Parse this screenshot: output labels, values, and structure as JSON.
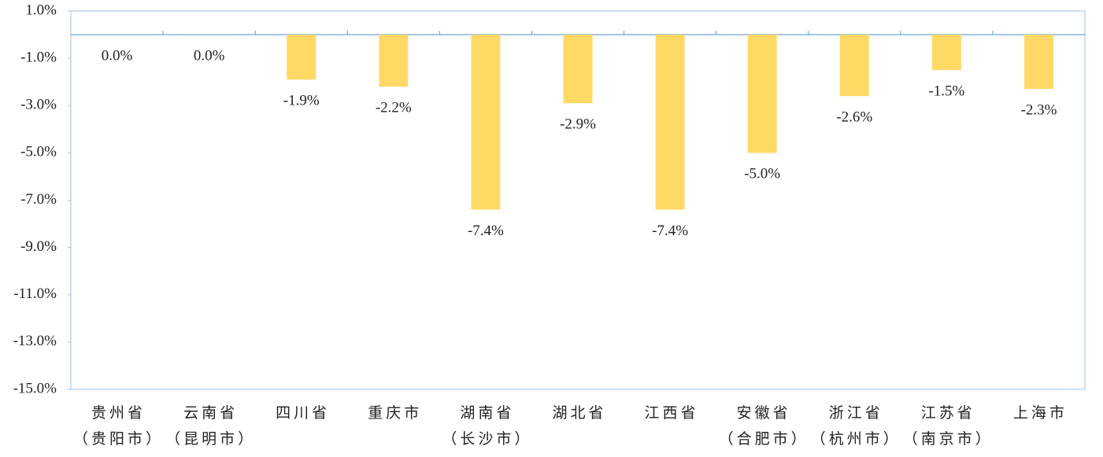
{
  "chart_data": {
    "type": "bar",
    "categories": [
      "贵州省\n（贵阳市）",
      "云南省\n（昆明市）",
      "四川省",
      "重庆市",
      "湖南省\n（长沙市）",
      "湖北省",
      "江西省",
      "安徽省\n（合肥市）",
      "浙江省\n（杭州市）",
      "江苏省\n（南京市）",
      "上海市"
    ],
    "values": [
      0.0,
      0.0,
      -1.9,
      -2.2,
      -7.4,
      -2.9,
      -7.4,
      -5.0,
      -2.6,
      -1.5,
      -2.3
    ],
    "value_labels": [
      "0.0%",
      "0.0%",
      "-1.9%",
      "-2.2%",
      "-7.4%",
      "-2.9%",
      "-7.4%",
      "-5.0%",
      "-2.6%",
      "-1.5%",
      "-2.3%"
    ],
    "color": "#FFD966",
    "ylim": [
      -15,
      1
    ],
    "yticks": [
      {
        "value": 1,
        "label": "1.0%"
      },
      {
        "value": -1,
        "label": "-1.0%"
      },
      {
        "value": -3,
        "label": "-3.0%"
      },
      {
        "value": -5,
        "label": "-5.0%"
      },
      {
        "value": -7,
        "label": "-7.0%"
      },
      {
        "value": -9,
        "label": "-9.0%"
      },
      {
        "value": -11,
        "label": "-11.0%"
      },
      {
        "value": -13,
        "label": "-13.0%"
      },
      {
        "value": -15,
        "label": "-15.0%"
      }
    ],
    "grid": false
  }
}
